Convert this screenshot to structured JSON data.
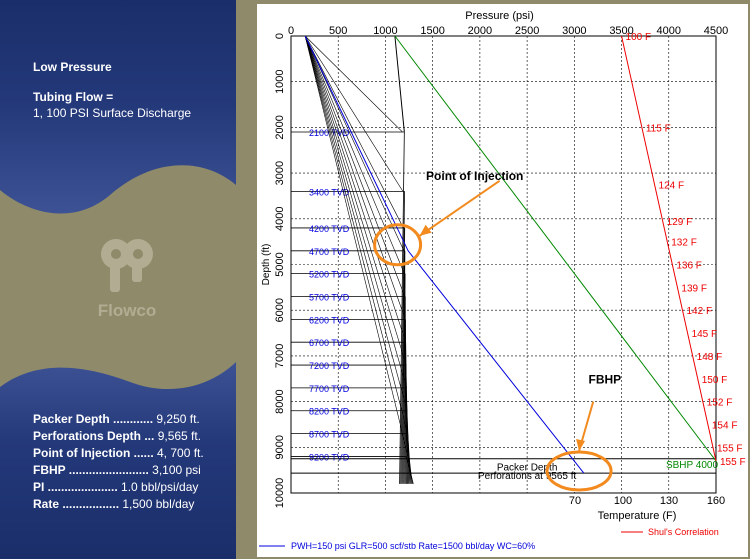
{
  "sidebar": {
    "heading": "Low Pressure",
    "tubing_label": "Tubing Flow =",
    "tubing_value": "1, 100 PSI Surface Discharge",
    "specs": [
      {
        "label": "Packer Depth ............",
        "value": " 9,250 ft."
      },
      {
        "label": "Perforations Depth ...",
        "value": " 9,565 ft."
      },
      {
        "label": "Point of Injection ......",
        "value": " 4, 700 ft."
      },
      {
        "label": "FBHP ........................",
        "value": " 3,100 psi"
      },
      {
        "label": "PI .....................",
        "value": " 1.0 bbl/psi/day"
      },
      {
        "label": "Rate .................",
        "value": " 1,500 bbl/day"
      }
    ],
    "logo_text": "Flowco",
    "colors": {
      "banner": "#1a2e6a",
      "banner_light": "#3d5294",
      "background": "#8f8a69"
    }
  },
  "chart_data": {
    "type": "line",
    "title": "Pressure (psi)",
    "x_ticks": [
      "0",
      "500",
      "1000",
      "1500",
      "2000",
      "2500",
      "3000",
      "3500",
      "4000",
      "4500"
    ],
    "xlim": [
      0,
      4500
    ],
    "ylabel": "Depth (ft)",
    "y_ticks": [
      "0",
      "1000",
      "2000",
      "3000",
      "4000",
      "5000",
      "6000",
      "7000",
      "8000",
      "9000",
      "10000"
    ],
    "ylim": [
      0,
      10000
    ],
    "temp_label": "Temperature (F)",
    "temp_ticks": [
      "70",
      "100",
      "130",
      "160"
    ],
    "temp_range": [
      70,
      160
    ],
    "grid": true,
    "tvd_labels": [
      "2100 TVD",
      "3400 TVD",
      "4200 TVD",
      "4700 TVD",
      "5200 TVD",
      "5700 TVD",
      "6200 TVD",
      "6700 TVD",
      "7200 TVD",
      "7700 TVD",
      "8200 TVD",
      "8700 TVD",
      "9200 TVD"
    ],
    "tvd_depths": [
      2100,
      3400,
      4200,
      4700,
      5200,
      5700,
      6200,
      6700,
      7200,
      7700,
      8200,
      8700,
      9200
    ],
    "temperatures": [
      {
        "label": "100 F",
        "depth": 0
      },
      {
        "label": "115 F",
        "depth": 2000
      },
      {
        "label": "124 F",
        "depth": 3250
      },
      {
        "label": "129 F",
        "depth": 4050
      },
      {
        "label": "132 F",
        "depth": 4500
      },
      {
        "label": "136 F",
        "depth": 5000
      },
      {
        "label": "139 F",
        "depth": 5500
      },
      {
        "label": "142 F",
        "depth": 6000
      },
      {
        "label": "145 F",
        "depth": 6500
      },
      {
        "label": "148 F",
        "depth": 7000
      },
      {
        "label": "150 F",
        "depth": 7500
      },
      {
        "label": "152 F",
        "depth": 8000
      },
      {
        "label": "154 F",
        "depth": 8500
      },
      {
        "label": "155 F",
        "depth": 9000
      },
      {
        "label": "155 F",
        "depth": 9300
      }
    ],
    "series": [
      {
        "color": "#0000dd",
        "points": [
          [
            150,
            0
          ],
          [
            1240,
            4700
          ],
          [
            3100,
            9565
          ]
        ]
      },
      {
        "color": "#008800",
        "points": [
          [
            1100,
            0
          ],
          [
            4500,
            9300
          ]
        ]
      },
      {
        "name": "Shul's Correlation",
        "color": "#ee0000",
        "points": [
          [
            3500,
            0
          ],
          [
            4500,
            9300
          ]
        ]
      }
    ],
    "casing_lines": {
      "surface_pressure": 1100,
      "bottom_pressure": 1200
    },
    "packer_depth": 9250,
    "perforation_depth": 9565,
    "packer_label": "Packer Depth",
    "perforation_label": "Perforations at 9565 ft",
    "sbhp_label": "SBHP 4000",
    "annotations": [
      {
        "text": "Point of Injection",
        "pressure": 1150,
        "depth": 4700
      },
      {
        "text": "FBHP",
        "pressure": 3050,
        "depth": 9300
      }
    ],
    "legend_text": "PWH=150 psi GLR=500 scf/stb Rate=1500 bbl/day WC=60%",
    "legend_right": "Shul's Correlation",
    "colors": {
      "blue": "#0000dd",
      "green": "#008800",
      "red": "#ee0000",
      "highlight": "#f28a1e"
    }
  }
}
